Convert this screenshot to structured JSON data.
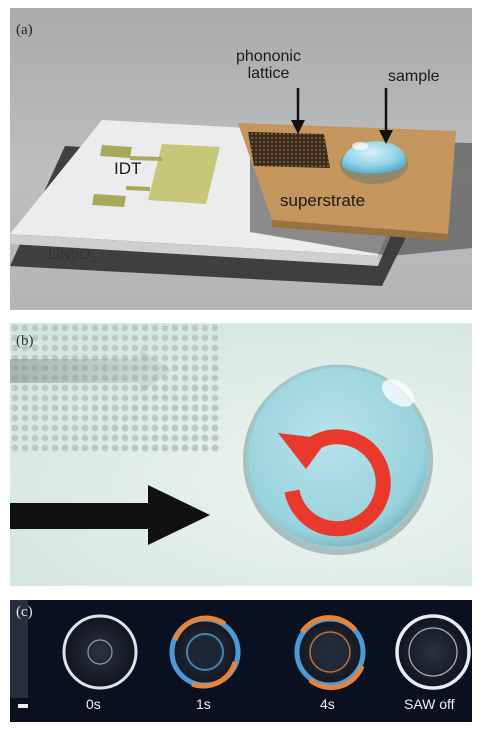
{
  "panels": {
    "a": {
      "label": "(a)",
      "phononic_label_line1": "phononic",
      "phononic_label_line2": "lattice",
      "sample_label": "sample",
      "idt_label": "IDT",
      "superstrate_label": "superstrate",
      "substrate_label_main": "LiNbO",
      "substrate_label_sub": "3"
    },
    "b": {
      "label": "(b)"
    },
    "c": {
      "label": "(c)",
      "time_labels": [
        "0s",
        "1s",
        "4s",
        "SAW off"
      ]
    }
  },
  "colors": {
    "idt": "#c7c77a",
    "superstrate": "#c4955c",
    "droplet": "#8fd3e6",
    "rotation_arrow": "#e8392c",
    "streaming_blue": "#4a9bd8",
    "streaming_orange": "#e8843a"
  }
}
